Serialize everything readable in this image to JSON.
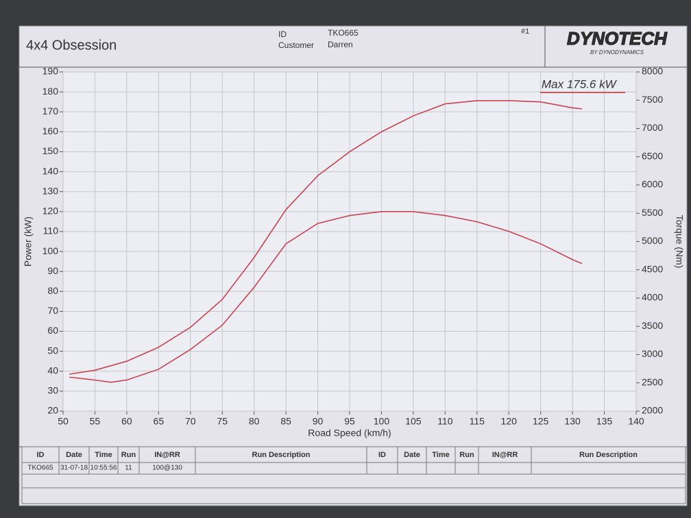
{
  "header": {
    "title": "4x4 Obsession",
    "id_label": "ID",
    "id": "TKO665",
    "customer_label": "Customer",
    "customer": "Darren",
    "run_no": "#1",
    "logo": "DYNOTECH",
    "logo_sub": "BY DYNODYNAMICS"
  },
  "chart_data": {
    "type": "line",
    "x_label": "Road Speed (km/h)",
    "y_label": "Power (kW)",
    "y2_label": "Torque (Nm)",
    "annotation": "Max 175.6 kW",
    "xlim": [
      50,
      140
    ],
    "xticks": [
      50,
      55,
      60,
      65,
      70,
      75,
      80,
      85,
      90,
      95,
      100,
      105,
      110,
      115,
      120,
      125,
      130,
      135,
      140
    ],
    "ylim": [
      20,
      190
    ],
    "yticks": [
      20,
      30,
      40,
      50,
      60,
      70,
      80,
      90,
      100,
      110,
      120,
      130,
      140,
      150,
      160,
      170,
      180,
      190
    ],
    "y2lim": [
      2000,
      8000
    ],
    "y2ticks": [
      2000,
      2500,
      3000,
      3500,
      4000,
      4500,
      5000,
      5500,
      6000,
      6500,
      7000,
      7500,
      8000
    ],
    "grid": true,
    "series": [
      {
        "color": "#c8434f",
        "x": [
          51,
          55,
          60,
          65,
          70,
          75,
          80,
          85,
          90,
          95,
          100,
          105,
          110,
          115,
          120,
          125,
          130,
          131.5
        ],
        "values": [
          38.5,
          40.5,
          45,
          52,
          62,
          76,
          97,
          121,
          138,
          150,
          160,
          168,
          174,
          175.6,
          175.6,
          175,
          172,
          171.5
        ]
      },
      {
        "color": "#c8434f",
        "axis": "y2",
        "x": [
          51,
          55,
          57.5,
          60,
          65,
          70,
          75,
          80,
          85,
          90,
          95,
          100,
          105,
          110,
          115,
          120,
          125,
          130,
          131.5
        ],
        "values": [
          2600,
          2550,
          2510,
          2550,
          2740,
          3090,
          3520,
          4190,
          4960,
          5320,
          5460,
          5530,
          5530,
          5460,
          5350,
          5180,
          4960,
          4680,
          4610
        ]
      }
    ]
  },
  "table": {
    "headers": [
      "ID",
      "Date",
      "Time",
      "Run",
      "IN@RR",
      "Run Description",
      "ID",
      "Date",
      "Time",
      "Run",
      "IN@RR",
      "Run Description"
    ],
    "rows": [
      [
        "TKO665",
        "31-07-18",
        "10:55:56",
        "11",
        "100@130"
      ]
    ]
  }
}
